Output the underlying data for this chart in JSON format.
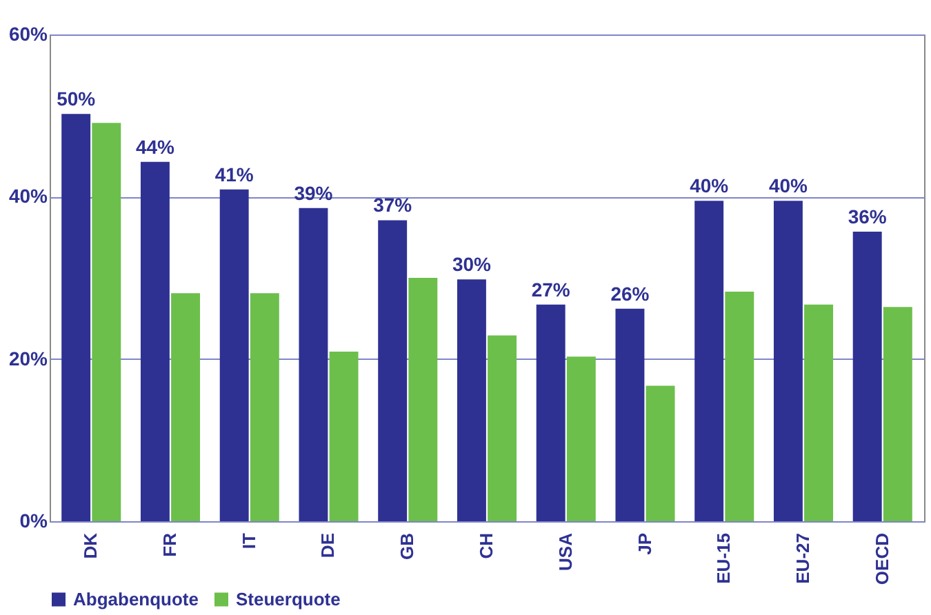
{
  "chart_data": {
    "type": "bar",
    "categories": [
      "DK",
      "FR",
      "IT",
      "DE",
      "GB",
      "CH",
      "USA",
      "JP",
      "EU-15",
      "EU-27",
      "OECD"
    ],
    "series": [
      {
        "name": "Abgabenquote",
        "color": "#2e3192",
        "values": [
          50.2,
          44.3,
          40.9,
          38.6,
          37.1,
          29.8,
          26.7,
          26.2,
          39.5,
          39.5,
          35.7
        ],
        "value_labels": [
          "50%",
          "44%",
          "41%",
          "39%",
          "37%",
          "30%",
          "27%",
          "26%",
          "40%",
          "40%",
          "36%"
        ]
      },
      {
        "name": "Steuerquote",
        "color": "#6cbf4b",
        "values": [
          49.1,
          28.1,
          28.1,
          20.9,
          30.0,
          22.9,
          20.3,
          16.7,
          28.3,
          26.7,
          26.4
        ]
      }
    ],
    "ylim": [
      0,
      60
    ],
    "yticks": [
      {
        "value": 0,
        "label": "0%"
      },
      {
        "value": 20,
        "label": "20%"
      },
      {
        "value": 40,
        "label": "40%"
      },
      {
        "value": 60,
        "label": "60%"
      }
    ],
    "grid": "y",
    "legend": "bottom"
  }
}
